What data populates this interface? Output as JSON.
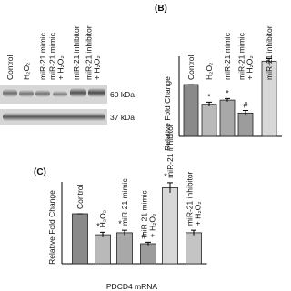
{
  "blot": {
    "lanes": [
      [
        "Control"
      ],
      [
        "H₂O₂"
      ],
      [
        "miR-21 mimic"
      ],
      [
        "miR-21 mimic",
        "+ H₂O₂"
      ],
      [
        "miR-21 inhibitor"
      ],
      [
        "miR-21 inhibitor",
        "+ H₂O₂"
      ]
    ],
    "bands": [
      "60 kDa",
      "37 kDa"
    ]
  },
  "chart_data": [
    {
      "type": "bar",
      "panel": "(B)",
      "ylabel": "Relative Fold Change",
      "categories": [
        [
          "Control"
        ],
        [
          "H₂O₂"
        ],
        [
          "miR-21 mimic"
        ],
        [
          "miR-21 mimic",
          "+ H₂O₂"
        ],
        [
          "miR-21 inhibitor"
        ]
      ],
      "values": [
        1.0,
        0.62,
        0.7,
        0.45,
        1.45
      ],
      "errors": [
        0.0,
        0.04,
        0.03,
        0.05,
        0.05
      ],
      "markers": [
        null,
        "*",
        "*",
        "#",
        null
      ],
      "colors": [
        "#8a8a8a",
        "#b9b9b9",
        "#a8a8a8",
        "#9c9c9c",
        "#d8d8d8"
      ],
      "ylim": [
        0,
        1.6
      ]
    },
    {
      "type": "bar",
      "panel": "(C)",
      "ylabel": "Relative Fold Change",
      "xlabel": "PDCD4 mRNA",
      "categories": [
        [
          "Control"
        ],
        [
          "H₂O₂"
        ],
        [
          "miR-21 mimic"
        ],
        [
          "miR-21 mimic",
          "+ H₂O₂"
        ],
        [
          "miR-21 inhibitor"
        ],
        [
          "miR-21 inhibitor",
          "+ H₂O₂"
        ]
      ],
      "values": [
        1.0,
        0.58,
        0.62,
        0.4,
        1.52,
        0.62
      ],
      "errors": [
        0.0,
        0.05,
        0.05,
        0.03,
        0.1,
        0.05
      ],
      "markers": [
        null,
        "*",
        "*",
        "#",
        "*",
        null
      ],
      "colors": [
        "#8a8a8a",
        "#b9b9b9",
        "#a8a8a8",
        "#9c9c9c",
        "#d8d8d8",
        "#c4c4c4"
      ],
      "ylim": [
        0,
        1.6
      ]
    }
  ]
}
